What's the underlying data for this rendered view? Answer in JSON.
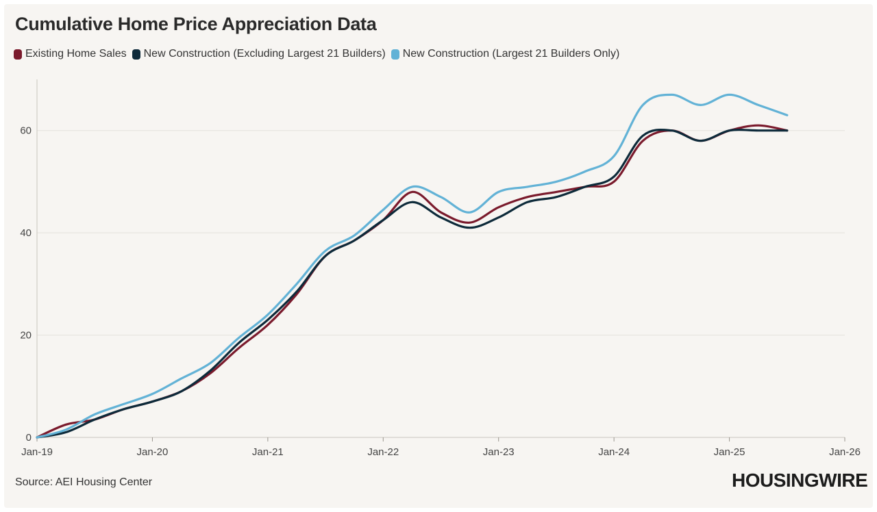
{
  "title": "Cumulative Home Price Appreciation Data",
  "source": "Source: AEI Housing Center",
  "logo": "HOUSINGWIRE",
  "colors": {
    "existing": "#7a1a2c",
    "new_excl": "#0d2a3a",
    "new_largest": "#62b2d6",
    "grid": "#e4e1dc",
    "axis_text": "#444444",
    "background": "#f7f5f2"
  },
  "chart_data": {
    "type": "line",
    "title": "Cumulative Home Price Appreciation Data",
    "xlabel": "",
    "ylabel": "",
    "xlim": [
      2019.0,
      2026.0
    ],
    "ylim": [
      0,
      70
    ],
    "yticks": [
      0,
      20,
      40,
      60
    ],
    "xticks": [
      {
        "label": "Jan-19",
        "value": 2019.0
      },
      {
        "label": "Jan-20",
        "value": 2020.0
      },
      {
        "label": "Jan-21",
        "value": 2021.0
      },
      {
        "label": "Jan-22",
        "value": 2022.0
      },
      {
        "label": "Jan-23",
        "value": 2023.0
      },
      {
        "label": "Jan-24",
        "value": 2024.0
      },
      {
        "label": "Jan-25",
        "value": 2025.0
      },
      {
        "label": "Jan-26",
        "value": 2026.0
      }
    ],
    "x": [
      2019.0,
      2019.25,
      2019.5,
      2019.75,
      2020.0,
      2020.25,
      2020.5,
      2020.75,
      2021.0,
      2021.25,
      2021.5,
      2021.75,
      2022.0,
      2022.25,
      2022.5,
      2022.75,
      2023.0,
      2023.25,
      2023.5,
      2023.75,
      2024.0,
      2024.25,
      2024.5,
      2024.75,
      2025.0,
      2025.25,
      2025.5
    ],
    "series": [
      {
        "name": "Existing Home Sales",
        "color_key": "existing",
        "values": [
          0,
          2.5,
          3.5,
          5.5,
          7,
          9,
          12.5,
          17.5,
          22,
          28,
          35.5,
          38.5,
          42.5,
          48,
          44,
          42,
          45,
          47,
          48,
          49,
          50,
          58,
          60,
          58,
          60,
          61,
          60
        ]
      },
      {
        "name": "New Construction (Excluding Largest 21 Builders)",
        "color_key": "new_excl",
        "values": [
          0,
          1,
          3.5,
          5.5,
          7,
          9,
          13,
          18.5,
          23,
          28.5,
          35.5,
          38.5,
          42.5,
          46,
          43,
          41,
          43,
          46,
          47,
          49,
          51,
          59,
          60,
          58,
          60,
          60,
          60
        ]
      },
      {
        "name": "New Construction (Largest 21 Builders Only)",
        "color_key": "new_largest",
        "values": [
          0,
          1.5,
          4.5,
          6.5,
          8.5,
          11.5,
          14.5,
          19.5,
          24,
          30,
          36.5,
          39.5,
          44.5,
          49,
          47,
          44,
          48,
          49,
          50,
          52,
          55,
          65,
          67,
          65,
          67,
          65,
          63
        ]
      }
    ],
    "legend_position": "top-left"
  }
}
